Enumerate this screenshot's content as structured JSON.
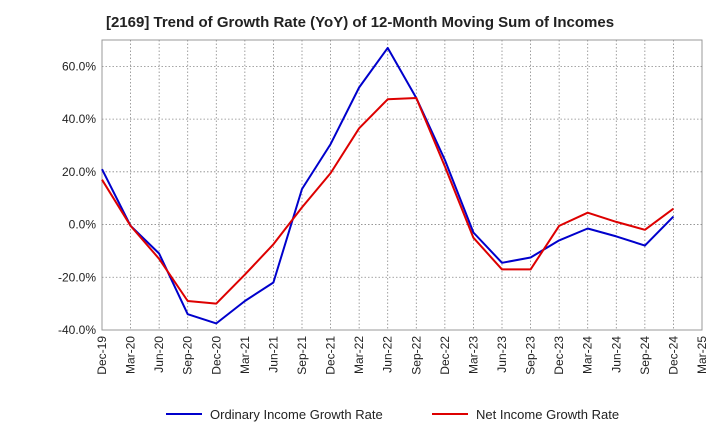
{
  "chart_data": {
    "type": "line",
    "title": "[2169]  Trend of Growth Rate (YoY) of 12-Month Moving Sum of Incomes",
    "xlabel": "",
    "ylabel": "",
    "categories": [
      "Dec-19",
      "Mar-20",
      "Jun-20",
      "Sep-20",
      "Dec-20",
      "Mar-21",
      "Jun-21",
      "Sep-21",
      "Dec-21",
      "Mar-22",
      "Jun-22",
      "Sep-22",
      "Dec-22",
      "Mar-23",
      "Jun-23",
      "Sep-23",
      "Dec-23",
      "Mar-24",
      "Jun-24",
      "Sep-24",
      "Dec-24",
      "Mar-25"
    ],
    "ylim": [
      -40,
      70
    ],
    "yticks": [
      -40,
      -20,
      0,
      20,
      40,
      60
    ],
    "ytick_labels": [
      "-40.0%",
      "-20.0%",
      "0.0%",
      "20.0%",
      "40.0%",
      "60.0%"
    ],
    "grid": true,
    "legend_position": "bottom",
    "series": [
      {
        "name": "Ordinary Income Growth Rate",
        "color": "#0000cc",
        "values": [
          21,
          -0.5,
          -11,
          -34,
          -37.5,
          -29,
          -22,
          13.5,
          30.5,
          52,
          67,
          48,
          24.5,
          -3,
          -14.5,
          -12.5,
          -6,
          -1.5,
          -4.5,
          -8,
          3,
          null
        ]
      },
      {
        "name": "Net Income Growth Rate",
        "color": "#dd0000",
        "values": [
          17,
          -0.5,
          -13,
          -29,
          -30,
          -19,
          -7.5,
          6.5,
          19.5,
          36.5,
          47.5,
          48,
          22,
          -5,
          -17,
          -17,
          -0.5,
          4.5,
          1,
          -2,
          6,
          null
        ]
      }
    ]
  }
}
